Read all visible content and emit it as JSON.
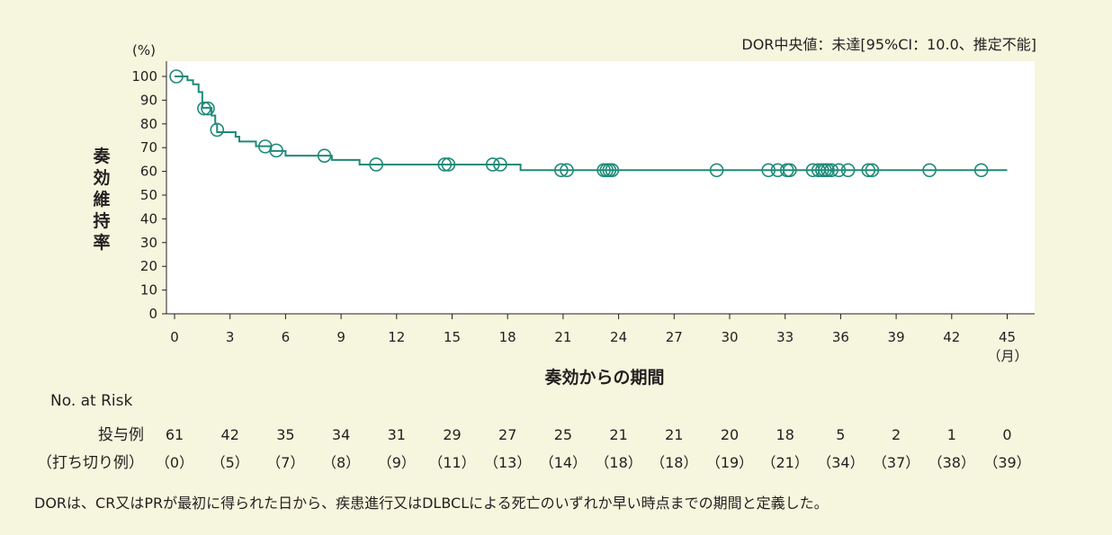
{
  "chart_data": {
    "type": "line",
    "subtype": "kaplan-meier",
    "annotation": "DOR中央値：未達[95%CI：10.0、推定不能]",
    "ylabel": "奏効維持率",
    "yunit": "(%)",
    "xlabel": "奏効からの期間",
    "xunit": "（月）",
    "xlim": [
      0,
      45
    ],
    "ylim": [
      0,
      100
    ],
    "xticks": [
      "0",
      "3",
      "6",
      "9",
      "12",
      "15",
      "18",
      "21",
      "24",
      "27",
      "30",
      "33",
      "36",
      "39",
      "42",
      "45"
    ],
    "yticks": [
      "0",
      "10",
      "20",
      "30",
      "40",
      "50",
      "60",
      "70",
      "80",
      "90",
      "100"
    ],
    "line_color": "#1e8a78",
    "series": [
      {
        "name": "DOR",
        "steps": [
          [
            0,
            100
          ],
          [
            0.7,
            98.4
          ],
          [
            1.0,
            96.7
          ],
          [
            1.3,
            93.4
          ],
          [
            1.5,
            86.8
          ],
          [
            2.0,
            83.5
          ],
          [
            2.2,
            80.0
          ],
          [
            2.3,
            76.5
          ],
          [
            3.3,
            74.6
          ],
          [
            3.5,
            72.6
          ],
          [
            4.4,
            70.6
          ],
          [
            5.2,
            68.6
          ],
          [
            6.0,
            66.6
          ],
          [
            8.5,
            64.8
          ],
          [
            10.0,
            62.9
          ],
          [
            18.7,
            60.5
          ]
        ],
        "x_end": 45,
        "censored": [
          [
            0.1,
            100
          ],
          [
            1.6,
            86.5
          ],
          [
            1.8,
            86.5
          ],
          [
            2.3,
            77.5
          ],
          [
            4.9,
            70.5
          ],
          [
            5.5,
            68.8
          ],
          [
            8.1,
            66.6
          ],
          [
            10.9,
            62.9
          ],
          [
            14.6,
            62.9
          ],
          [
            14.8,
            62.9
          ],
          [
            17.2,
            62.9
          ],
          [
            17.6,
            62.9
          ],
          [
            20.9,
            60.5
          ],
          [
            21.2,
            60.5
          ],
          [
            23.2,
            60.5
          ],
          [
            23.35,
            60.5
          ],
          [
            23.5,
            60.5
          ],
          [
            23.65,
            60.5
          ],
          [
            29.3,
            60.5
          ],
          [
            32.1,
            60.5
          ],
          [
            32.6,
            60.5
          ],
          [
            33.1,
            60.5
          ],
          [
            33.25,
            60.5
          ],
          [
            34.5,
            60.5
          ],
          [
            34.8,
            60.5
          ],
          [
            35.0,
            60.5
          ],
          [
            35.15,
            60.5
          ],
          [
            35.3,
            60.5
          ],
          [
            35.5,
            60.5
          ],
          [
            35.9,
            60.5
          ],
          [
            36.4,
            60.5
          ],
          [
            37.5,
            60.5
          ],
          [
            37.7,
            60.5
          ],
          [
            40.8,
            60.5
          ],
          [
            43.6,
            60.5
          ]
        ]
      }
    ],
    "risk_table": {
      "header": "No. at Risk",
      "times": [
        0,
        3,
        6,
        9,
        12,
        15,
        18,
        21,
        24,
        27,
        30,
        33,
        36,
        39,
        42,
        45
      ],
      "rows": [
        {
          "label": "投与例",
          "values": [
            "61",
            "42",
            "35",
            "34",
            "31",
            "29",
            "27",
            "25",
            "21",
            "21",
            "20",
            "18",
            "5",
            "2",
            "1",
            "0"
          ]
        },
        {
          "label": "（打ち切り例）",
          "values": [
            "（0）",
            "（5）",
            "（7）",
            "（8）",
            "（9）",
            "（11）",
            "（13）",
            "（14）",
            "（18）",
            "（18）",
            "（19）",
            "（21）",
            "（34）",
            "（37）",
            "（38）",
            "（39）"
          ]
        }
      ]
    }
  },
  "footer": "DORは、CR又はPRが最初に得られた日から、疾患進行又はDLBCLによる死亡のいずれか早い時点までの期間と定義した。"
}
